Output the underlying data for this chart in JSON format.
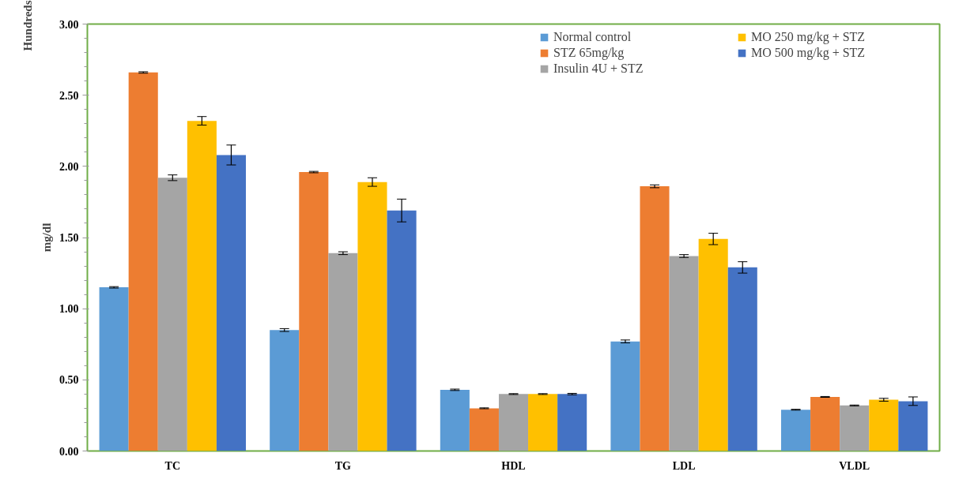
{
  "chart_data": {
    "type": "bar",
    "ylabel": "mg/dl",
    "annotations": [
      "Hundreds"
    ],
    "categories": [
      "TC",
      "TG",
      "HDL",
      "LDL",
      "VLDL"
    ],
    "series": [
      {
        "name": "Normal control",
        "color": "#5b9bd5",
        "values": [
          1.15,
          0.85,
          0.43,
          0.77,
          0.29
        ],
        "errors": [
          0.005,
          0.01,
          0.005,
          0.01,
          0.003
        ]
      },
      {
        "name": "STZ 65mg/kg",
        "color": "#ed7d31",
        "values": [
          2.66,
          1.96,
          0.3,
          1.86,
          0.38
        ],
        "errors": [
          0.005,
          0.005,
          0.003,
          0.01,
          0.003
        ]
      },
      {
        "name": "Insulin 4U + STZ",
        "color": "#a5a5a5",
        "values": [
          1.92,
          1.39,
          0.4,
          1.37,
          0.32
        ],
        "errors": [
          0.02,
          0.01,
          0.003,
          0.01,
          0.003
        ]
      },
      {
        "name": "MO 250 mg/kg + STZ",
        "color": "#ffc000",
        "values": [
          2.32,
          1.89,
          0.4,
          1.49,
          0.36
        ],
        "errors": [
          0.03,
          0.03,
          0.003,
          0.04,
          0.01
        ]
      },
      {
        "name": "MO 500 mg/kg + STZ",
        "color": "#4472c4",
        "values": [
          2.08,
          1.69,
          0.4,
          1.29,
          0.35
        ],
        "errors": [
          0.07,
          0.08,
          0.005,
          0.04,
          0.03
        ]
      }
    ],
    "ylim": [
      0,
      3
    ],
    "yticks": [
      {
        "value": 0,
        "label": "0.00"
      },
      {
        "value": 0.5,
        "label": "0.50"
      },
      {
        "value": 1,
        "label": "1.00"
      },
      {
        "value": 1.5,
        "label": "1.50"
      },
      {
        "value": 2,
        "label": "2.00"
      },
      {
        "value": 2.5,
        "label": "2.50"
      },
      {
        "value": 3,
        "label": "3.00"
      }
    ],
    "grid": false,
    "legend": "top right"
  }
}
